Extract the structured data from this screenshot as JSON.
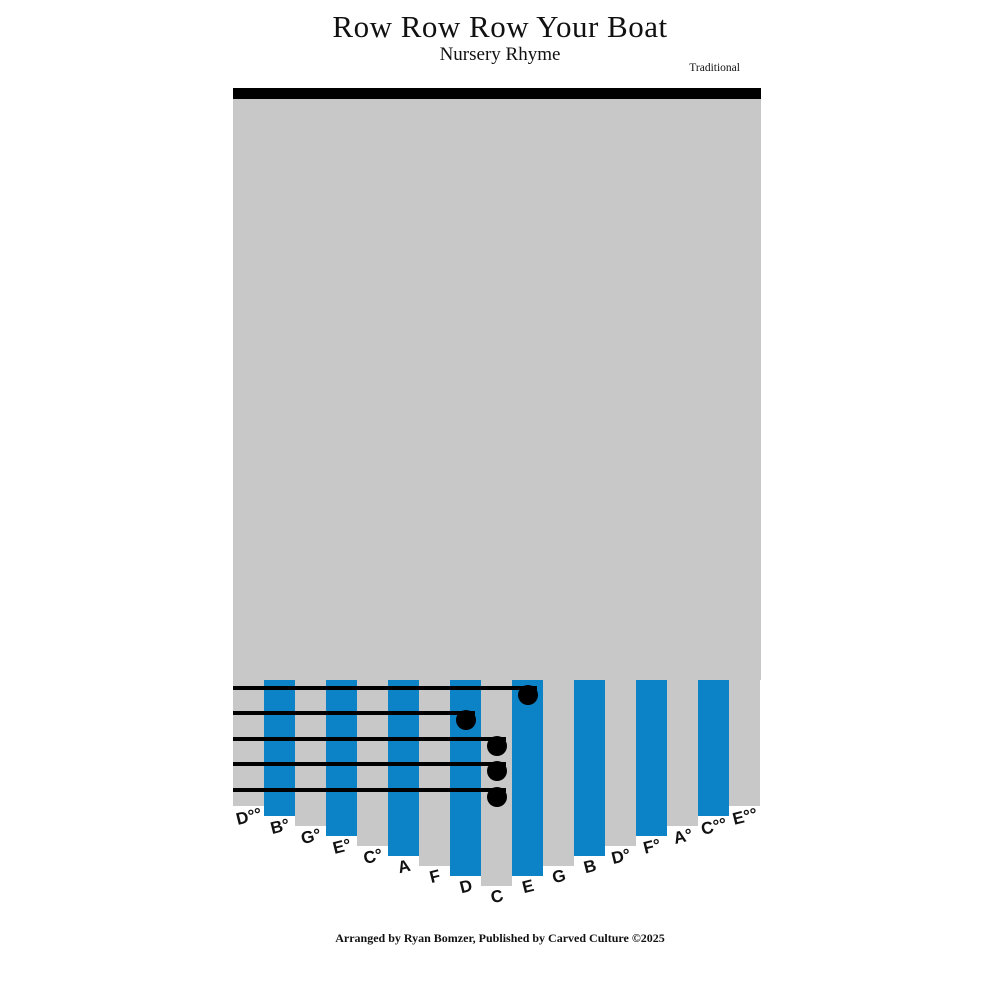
{
  "page": {
    "title": "Row Row Row Your Boat",
    "subtitle": "Nursery Rhyme",
    "credit": "Traditional",
    "footer": "Arranged by Ryan Bomzer, Published by Carved Culture ©2025"
  },
  "kalimba": {
    "colors": {
      "tine_blue": "#0c82c7",
      "body_gray": "#c8c8c8",
      "top_bar_black": "#000000",
      "note_black": "#000000"
    },
    "tines": [
      {
        "label": "D°°",
        "color": "gray"
      },
      {
        "label": "B°",
        "color": "blue"
      },
      {
        "label": "G°",
        "color": "gray"
      },
      {
        "label": "E°",
        "color": "blue"
      },
      {
        "label": "C°",
        "color": "gray"
      },
      {
        "label": "A",
        "color": "blue"
      },
      {
        "label": "F",
        "color": "gray"
      },
      {
        "label": "D",
        "color": "blue"
      },
      {
        "label": "C",
        "color": "gray"
      },
      {
        "label": "E",
        "color": "blue"
      },
      {
        "label": "G",
        "color": "gray"
      },
      {
        "label": "B",
        "color": "blue"
      },
      {
        "label": "D°",
        "color": "gray"
      },
      {
        "label": "F°",
        "color": "blue"
      },
      {
        "label": "A°",
        "color": "gray"
      },
      {
        "label": "C°°",
        "color": "blue"
      },
      {
        "label": "E°°",
        "color": "gray"
      }
    ],
    "note_lines_top_to_bottom": [
      "E",
      "D",
      "C",
      "C",
      "C"
    ],
    "melody_played_bottom_up": [
      "C",
      "C",
      "C",
      "D",
      "E"
    ]
  }
}
